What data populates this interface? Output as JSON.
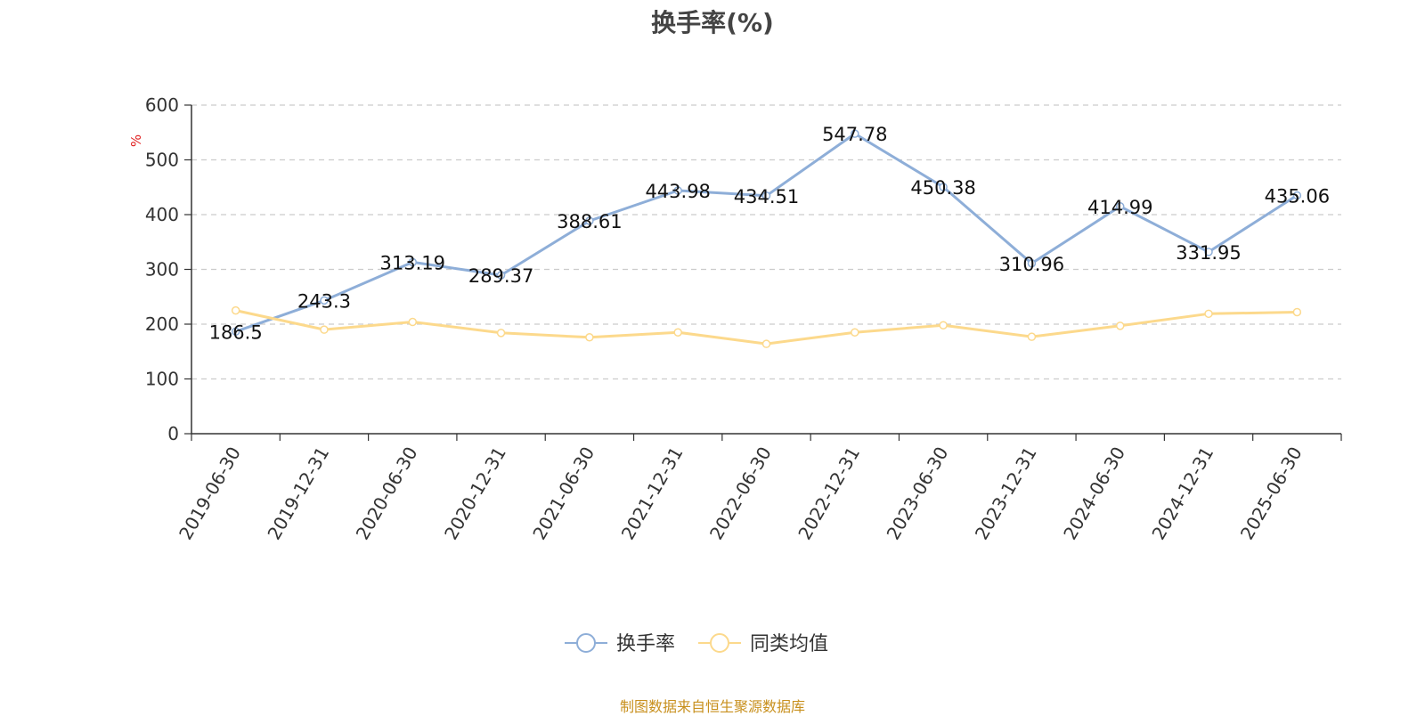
{
  "chart_data": {
    "type": "line",
    "title": "换手率(%)",
    "ylabel": "%",
    "ylim": [
      0,
      600
    ],
    "yticks": [
      0,
      100,
      200,
      300,
      400,
      500,
      600
    ],
    "grid": true,
    "legend_position": "bottom",
    "categories": [
      "2019-06-30",
      "2019-12-31",
      "2020-06-30",
      "2020-12-31",
      "2021-06-30",
      "2021-12-31",
      "2022-06-30",
      "2022-12-31",
      "2023-06-30",
      "2023-12-31",
      "2024-06-30",
      "2024-12-31",
      "2025-06-30"
    ],
    "series": [
      {
        "name": "换手率",
        "color": "#8eaed8",
        "show_labels": true,
        "values": [
          186.5,
          243.3,
          313.19,
          289.37,
          388.61,
          443.98,
          434.51,
          547.78,
          450.38,
          310.96,
          414.99,
          331.95,
          435.06
        ]
      },
      {
        "name": "同类均值",
        "color": "#fcd98c",
        "show_labels": false,
        "values": [
          225,
          190,
          204,
          184,
          176,
          185,
          164,
          185,
          198,
          177,
          197,
          219,
          222
        ]
      }
    ]
  },
  "source_note": "制图数据来自恒生聚源数据库",
  "colors": {
    "axis": "#333333",
    "grid": "#cccccc",
    "ylabel": "#e02020",
    "text": "#333333",
    "source": "#c8901e"
  }
}
